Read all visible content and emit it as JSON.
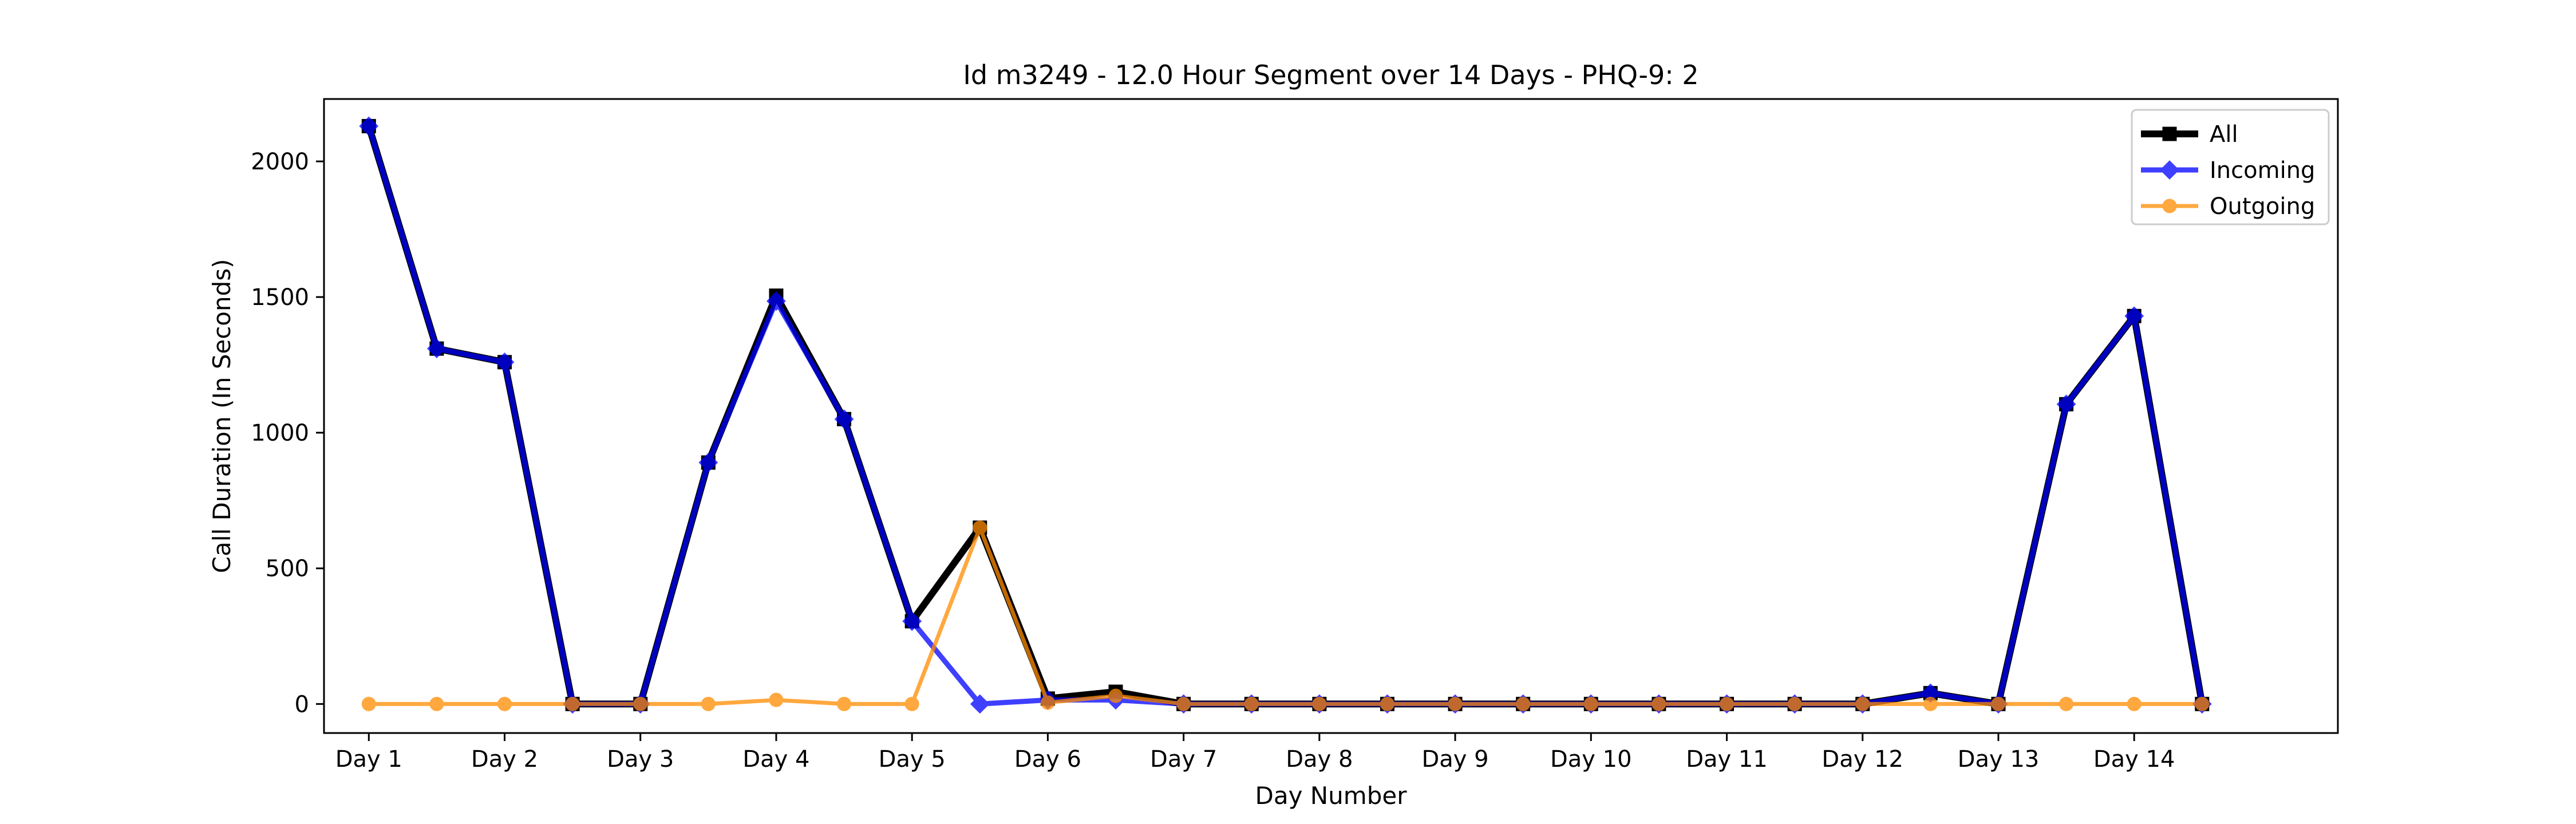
{
  "chart_data": {
    "type": "line",
    "title": "Id m3249 - 12.0 Hour Segment over 14 Days - PHQ-9: 2",
    "xlabel": "Day Number",
    "ylabel": "Call Duration (In Seconds)",
    "x": [
      1,
      1.5,
      2,
      2.5,
      3,
      3.5,
      4,
      4.5,
      5,
      5.5,
      6,
      6.5,
      7,
      7.5,
      8,
      8.5,
      9,
      9.5,
      10,
      10.5,
      11,
      11.5,
      12,
      12.5,
      13,
      13.5,
      14,
      14.5
    ],
    "x_ticks": [
      1,
      2,
      3,
      4,
      5,
      6,
      7,
      8,
      9,
      10,
      11,
      12,
      13,
      14
    ],
    "x_tick_labels": [
      "Day 1",
      "Day 2",
      "Day 3",
      "Day 4",
      "Day 5",
      "Day 6",
      "Day 7",
      "Day 8",
      "Day 9",
      "Day 10",
      "Day 11",
      "Day 12",
      "Day 13",
      "Day 14"
    ],
    "xlim": [
      0.67,
      15.5
    ],
    "ylim": [
      -107,
      2230
    ],
    "y_ticks": [
      0,
      500,
      1000,
      1500,
      2000
    ],
    "y_tick_labels": [
      "0",
      "500",
      "1000",
      "1500",
      "2000"
    ],
    "grid": false,
    "legend_position": "top-right",
    "series": [
      {
        "name": "All",
        "color": "#000000",
        "marker": "square",
        "values": [
          2130,
          1310,
          1260,
          0,
          0,
          890,
          1505,
          1050,
          305,
          650,
          20,
          45,
          0,
          0,
          0,
          0,
          0,
          0,
          0,
          0,
          0,
          0,
          0,
          40,
          0,
          1105,
          1430,
          0
        ]
      },
      {
        "name": "Incoming",
        "color": "#0000ff",
        "marker": "diamond",
        "values": [
          2130,
          1310,
          1260,
          0,
          0,
          890,
          1485,
          1050,
          305,
          0,
          15,
          15,
          0,
          0,
          0,
          0,
          0,
          0,
          0,
          0,
          0,
          0,
          0,
          40,
          0,
          1105,
          1430,
          0
        ]
      },
      {
        "name": "Outgoing",
        "color": "#ff8c00",
        "marker": "circle",
        "values": [
          0,
          0,
          0,
          0,
          0,
          0,
          15,
          0,
          0,
          650,
          5,
          30,
          0,
          0,
          0,
          0,
          0,
          0,
          0,
          0,
          0,
          0,
          0,
          0,
          0,
          0,
          0,
          0
        ]
      }
    ]
  }
}
